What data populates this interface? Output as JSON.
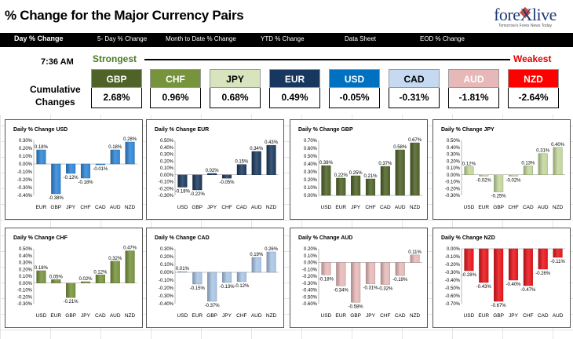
{
  "header": {
    "title": "% Change for the Major Currency Pairs",
    "logo": "forexlive",
    "logo_tagline": "Tomorrow's Forex News Today"
  },
  "tabs": [
    {
      "label": "Day % Change",
      "active": true
    },
    {
      "label": "5- Day % Change",
      "active": false
    },
    {
      "label": "Month to Date % Change",
      "active": false
    },
    {
      "label": "YTD % Change",
      "active": false
    },
    {
      "label": "Data Sheet",
      "active": false
    },
    {
      "label": "EOD % Change",
      "active": false
    }
  ],
  "summary": {
    "time": "7:36 AM",
    "strongest_label": "Strongest",
    "weakest_label": "Weakest",
    "cumulative_label_1": "Cumulative",
    "cumulative_label_2": "Changes",
    "currencies": [
      {
        "name": "GBP",
        "value": "2.68%",
        "bg": "#4f6228",
        "fg": "#ffffff"
      },
      {
        "name": "CHF",
        "value": "0.96%",
        "bg": "#77933c",
        "fg": "#ffffff"
      },
      {
        "name": "JPY",
        "value": "0.68%",
        "bg": "#d7e4bd",
        "fg": "#000000"
      },
      {
        "name": "EUR",
        "value": "0.49%",
        "bg": "#17375e",
        "fg": "#ffffff"
      },
      {
        "name": "USD",
        "value": "-0.05%",
        "bg": "#0070c0",
        "fg": "#ffffff"
      },
      {
        "name": "CAD",
        "value": "-0.31%",
        "bg": "#c5d9f1",
        "fg": "#000000"
      },
      {
        "name": "AUD",
        "value": "-1.81%",
        "bg": "#e6b9b8",
        "fg": "#ffffff"
      },
      {
        "name": "NZD",
        "value": "-2.64%",
        "bg": "#ff0000",
        "fg": "#ffffff"
      }
    ]
  },
  "chart_data": [
    {
      "type": "bar",
      "title": "Daily % Change USD",
      "color": "#2e86d6",
      "categories": [
        "EUR",
        "GBP",
        "JPY",
        "CHF",
        "CAD",
        "AUD",
        "NZD"
      ],
      "values": [
        0.18,
        -0.38,
        -0.12,
        -0.18,
        -0.01,
        0.18,
        0.28
      ],
      "labels": [
        "0.18%",
        "-0.38%",
        "-0.12%",
        "-0.18%",
        "-0.01%",
        "0.18%",
        "0.28%"
      ],
      "ylim": [
        -0.4,
        0.3
      ],
      "yticks": [
        "0.30%",
        "0.20%",
        "0.10%",
        "0.00%",
        "-0.10%",
        "-0.20%",
        "-0.30%",
        "-0.40%"
      ]
    },
    {
      "type": "bar",
      "title": "Daily % Change EUR",
      "color": "#1c3a5e",
      "categories": [
        "USD",
        "GBP",
        "JPY",
        "CHF",
        "CAD",
        "AUD",
        "NZD"
      ],
      "values": [
        -0.18,
        -0.22,
        0.02,
        -0.05,
        0.15,
        0.34,
        0.43
      ],
      "labels": [
        "-0.18%",
        "-0.22%",
        "0.02%",
        "-0.05%",
        "0.15%",
        "0.34%",
        "0.43%"
      ],
      "ylim": [
        -0.3,
        0.5
      ],
      "yticks": [
        "0.50%",
        "0.40%",
        "0.30%",
        "0.20%",
        "0.10%",
        "0.00%",
        "-0.10%",
        "-0.20%",
        "-0.30%"
      ]
    },
    {
      "type": "bar",
      "title": "Daily % Change GBP",
      "color": "#4f6228",
      "categories": [
        "USD",
        "EUR",
        "JPY",
        "CHF",
        "CAD",
        "AUD",
        "NZD"
      ],
      "values": [
        0.38,
        0.22,
        0.25,
        0.21,
        0.37,
        0.58,
        0.67
      ],
      "labels": [
        "0.38%",
        "0.22%",
        "0.25%",
        "0.21%",
        "0.37%",
        "0.58%",
        "0.67%"
      ],
      "ylim": [
        0,
        0.7
      ],
      "yticks": [
        "0.70%",
        "0.60%",
        "0.50%",
        "0.40%",
        "0.30%",
        "0.20%",
        "0.10%",
        "0.00%"
      ]
    },
    {
      "type": "bar",
      "title": "Daily % Change JPY",
      "color": "#c3d69b",
      "categories": [
        "USD",
        "EUR",
        "GBP",
        "CHF",
        "CAD",
        "AUD",
        "NZD"
      ],
      "values": [
        0.12,
        -0.02,
        -0.25,
        -0.02,
        0.13,
        0.31,
        0.4
      ],
      "labels": [
        "0.12%",
        "-0.02%",
        "-0.25%",
        "-0.02%",
        "0.13%",
        "0.31%",
        "0.40%"
      ],
      "ylim": [
        -0.3,
        0.5
      ],
      "yticks": [
        "0.50%",
        "0.40%",
        "0.30%",
        "0.20%",
        "0.10%",
        "0.00%",
        "-0.10%",
        "-0.20%",
        "-0.30%"
      ]
    },
    {
      "type": "bar",
      "title": "Daily % Change CHF",
      "color": "#77933c",
      "categories": [
        "USD",
        "EUR",
        "GBP",
        "JPY",
        "CAD",
        "AUD",
        "NZD"
      ],
      "values": [
        0.18,
        0.05,
        -0.21,
        0.02,
        0.12,
        0.32,
        0.47
      ],
      "labels": [
        "0.18%",
        "0.05%",
        "-0.21%",
        "0.02%",
        "0.12%",
        "0.32%",
        "0.47%"
      ],
      "ylim": [
        -0.3,
        0.5
      ],
      "yticks": [
        "0.50%",
        "0.40%",
        "0.30%",
        "0.20%",
        "0.10%",
        "0.00%",
        "-0.10%",
        "-0.20%",
        "-0.30%"
      ]
    },
    {
      "type": "bar",
      "title": "Daily % Change CAD",
      "color": "#a9c4e4",
      "categories": [
        "USD",
        "EUR",
        "GBP",
        "JPY",
        "CHF",
        "AUD",
        "NZD"
      ],
      "values": [
        0.01,
        -0.15,
        -0.37,
        -0.13,
        -0.12,
        0.19,
        0.26
      ],
      "labels": [
        "0.01%",
        "-0.15%",
        "-0.37%",
        "-0.13%",
        "-0.12%",
        "0.19%",
        "0.26%"
      ],
      "ylim": [
        -0.4,
        0.3
      ],
      "yticks": [
        "0.30%",
        "0.20%",
        "0.10%",
        "0.00%",
        "-0.10%",
        "-0.20%",
        "-0.30%",
        "-0.40%"
      ]
    },
    {
      "type": "bar",
      "title": "Daily % Change AUD",
      "color": "#e6b9b8",
      "categories": [
        "USD",
        "EUR",
        "GBP",
        "JPY",
        "CHF",
        "CAD",
        "NZD"
      ],
      "values": [
        -0.18,
        -0.34,
        -0.58,
        -0.31,
        -0.32,
        -0.19,
        0.11
      ],
      "labels": [
        "-0.18%",
        "-0.34%",
        "-0.58%",
        "-0.31%",
        "-0.32%",
        "-0.19%",
        "0.11%"
      ],
      "ylim": [
        -0.6,
        0.2
      ],
      "yticks": [
        "0.20%",
        "0.10%",
        "0.00%",
        "-0.10%",
        "-0.20%",
        "-0.30%",
        "-0.40%",
        "-0.50%",
        "-0.60%"
      ]
    },
    {
      "type": "bar",
      "title": "Daily % Change NZD",
      "color": "#e8141a",
      "categories": [
        "USD",
        "EUR",
        "GBP",
        "JPY",
        "CHF",
        "CAD",
        "AUD"
      ],
      "values": [
        -0.28,
        -0.43,
        -0.67,
        -0.4,
        -0.47,
        -0.26,
        -0.11
      ],
      "labels": [
        "-0.28%",
        "-0.43%",
        "-0.67%",
        "-0.40%",
        "-0.47%",
        "-0.26%",
        "-0.11%"
      ],
      "ylim": [
        -0.7,
        0
      ],
      "yticks": [
        "0.00%",
        "-0.10%",
        "-0.20%",
        "-0.30%",
        "-0.40%",
        "-0.50%",
        "-0.60%",
        "-0.70%"
      ]
    }
  ]
}
